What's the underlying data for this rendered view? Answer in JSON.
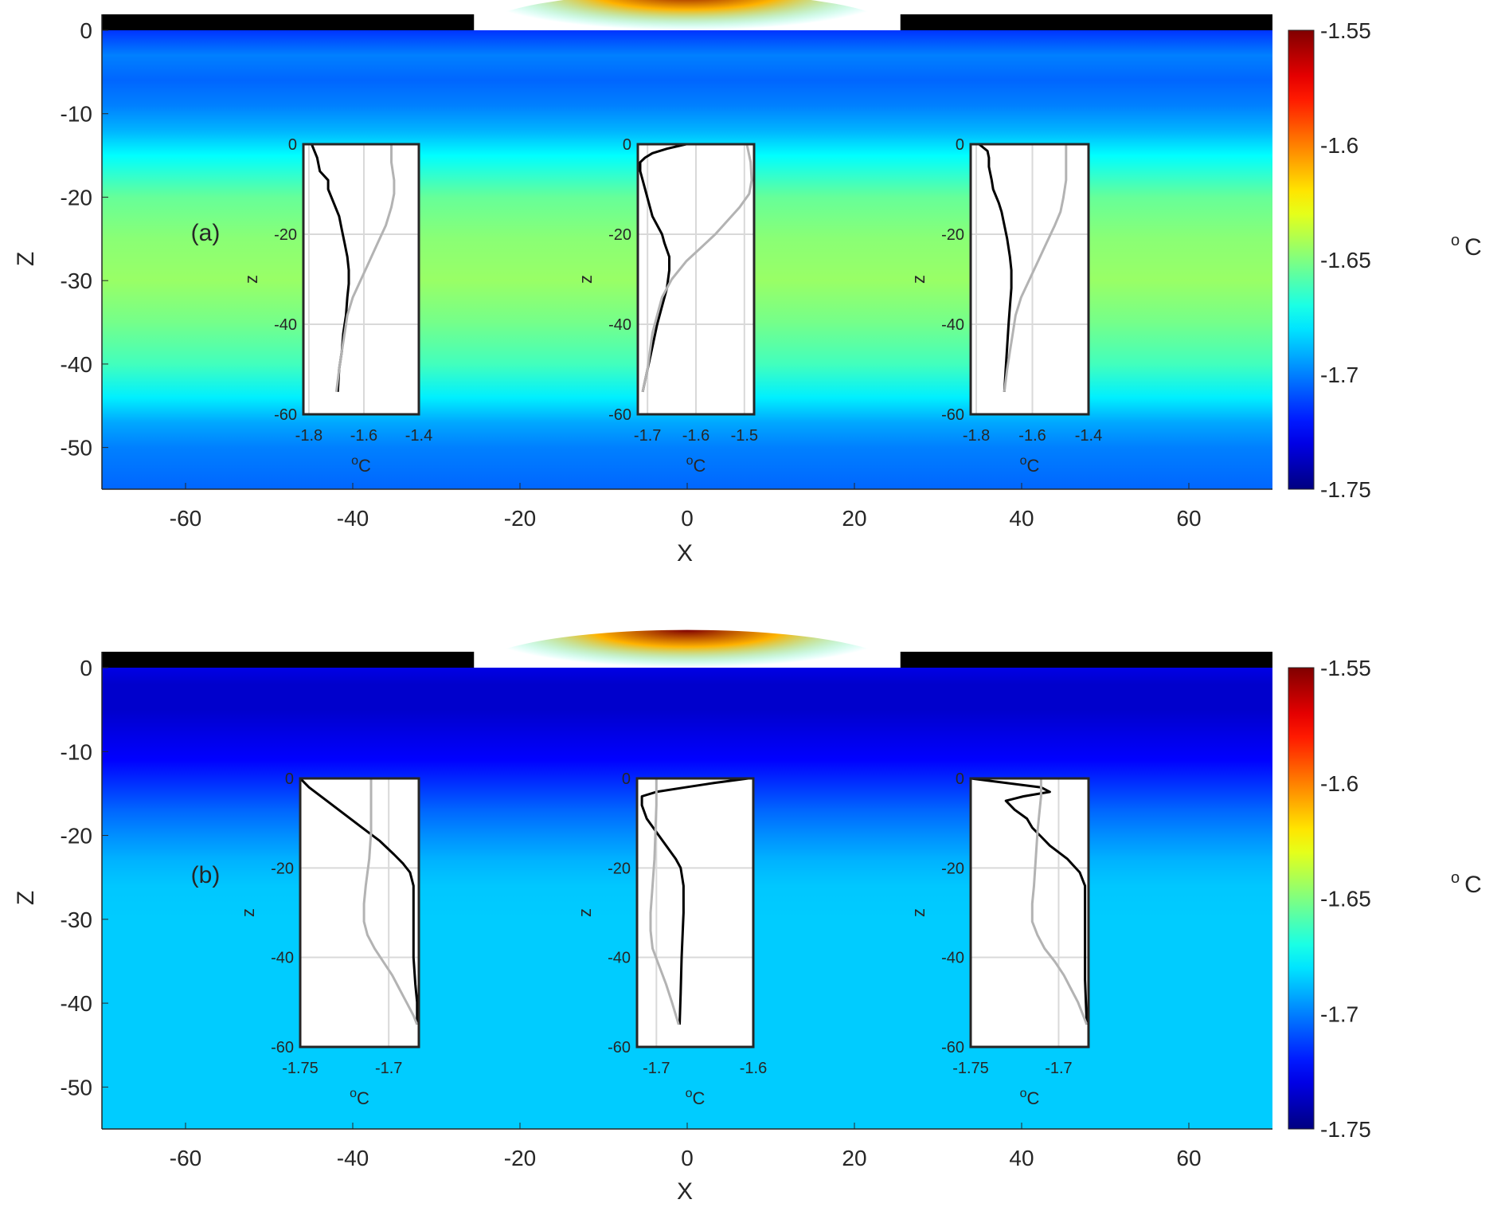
{
  "figure": {
    "colormap": "jet",
    "colors": {
      "ice": "#000000",
      "axes": "#262626",
      "inset_bg": "#ffffff",
      "grid": "#d9d9d9",
      "profile_dark": "#000000",
      "profile_light": "#b3b3b3"
    }
  },
  "chart_data": [
    {
      "type": "heatmap",
      "panel_label": "(a)",
      "xlabel": "X",
      "ylabel": "Z",
      "xlim": [
        -70,
        70
      ],
      "ylim": [
        -55,
        0
      ],
      "xticks": [
        "-60",
        "-40",
        "-20",
        "0",
        "20",
        "40",
        "60"
      ],
      "yticks": [
        "0",
        "-10",
        "-20",
        "-30",
        "-40",
        "-50"
      ],
      "colorbar": {
        "label_sup": "o",
        "label_unit": "C",
        "range": [
          -1.75,
          -1.55
        ],
        "ticks": [
          "-1.55",
          "-1.6",
          "-1.65",
          "-1.7",
          "-1.75"
        ]
      },
      "ice_cover": [
        {
          "x": [
            -70,
            -25.5
          ]
        },
        {
          "x": [
            25.5,
            70
          ]
        }
      ],
      "field_profile": {
        "z": [
          0,
          -1,
          -3,
          -6,
          -9,
          -12,
          -15,
          -20,
          -25,
          -30,
          -35,
          -40,
          -44,
          -47,
          -50,
          -55
        ],
        "t": [
          -1.715,
          -1.71,
          -1.7,
          -1.705,
          -1.7,
          -1.69,
          -1.675,
          -1.655,
          -1.648,
          -1.645,
          -1.652,
          -1.662,
          -1.678,
          -1.692,
          -1.7,
          -1.705
        ]
      },
      "surface_anomaly": {
        "x": [
          -25,
          25
        ],
        "depth": 1.5,
        "peak": -1.55
      },
      "insets": [
        {
          "xlabel_sup": "o",
          "xlabel_unit": "C",
          "ylabel": "z",
          "xlim": [
            -1.82,
            -1.4
          ],
          "ylim": [
            -60,
            0
          ],
          "xticks": [
            -1.8,
            -1.6,
            -1.4
          ],
          "xtick_labels": [
            "-1.8",
            "-1.6",
            "-1.4"
          ],
          "yticks": [
            0,
            -20,
            -40,
            -60
          ],
          "ytick_labels": [
            "0",
            "-20",
            "-40",
            "-60"
          ],
          "series": [
            {
              "color": "#000000",
              "z": [
                0,
                -3,
                -6,
                -8,
                -10,
                -13,
                -16,
                -19,
                -22,
                -25,
                -28,
                -31,
                -34,
                -38,
                -42,
                -46,
                -50,
                -55
              ],
              "t": [
                -1.79,
                -1.77,
                -1.76,
                -1.73,
                -1.73,
                -1.71,
                -1.69,
                -1.68,
                -1.67,
                -1.66,
                -1.655,
                -1.655,
                -1.66,
                -1.665,
                -1.675,
                -1.68,
                -1.69,
                -1.695
              ]
            },
            {
              "color": "#b3b3b3",
              "z": [
                0,
                -4,
                -8,
                -11,
                -14,
                -18,
                -22,
                -26,
                -30,
                -34,
                -38,
                -42,
                -46,
                -50,
                -55
              ],
              "t": [
                -1.5,
                -1.5,
                -1.49,
                -1.49,
                -1.5,
                -1.52,
                -1.55,
                -1.58,
                -1.61,
                -1.64,
                -1.66,
                -1.67,
                -1.68,
                -1.69,
                -1.7
              ]
            }
          ]
        },
        {
          "xlabel_sup": "o",
          "xlabel_unit": "C",
          "ylabel": "z",
          "xlim": [
            -1.72,
            -1.48
          ],
          "ylim": [
            -60,
            0
          ],
          "xticks": [
            -1.7,
            -1.6,
            -1.5
          ],
          "xtick_labels": [
            "-1.7",
            "-1.6",
            "-1.5"
          ],
          "yticks": [
            0,
            -20,
            -40,
            -60
          ],
          "ytick_labels": [
            "0",
            "-20",
            "-40",
            "-60"
          ],
          "series": [
            {
              "color": "#000000",
              "z": [
                0,
                -1,
                -2,
                -3,
                -4,
                -6,
                -8,
                -12,
                -16,
                -20,
                -22,
                -25,
                -28,
                -32,
                -36,
                -40,
                -45,
                -50,
                -55
              ],
              "t": [
                -1.62,
                -1.66,
                -1.69,
                -1.705,
                -1.715,
                -1.715,
                -1.71,
                -1.7,
                -1.69,
                -1.67,
                -1.665,
                -1.655,
                -1.655,
                -1.66,
                -1.67,
                -1.68,
                -1.69,
                -1.7,
                -1.71
              ]
            },
            {
              "color": "#b3b3b3",
              "z": [
                0,
                -4,
                -8,
                -11,
                -14,
                -17,
                -20,
                -23,
                -26,
                -30,
                -34,
                -38,
                -42,
                -46,
                -50,
                -55
              ],
              "t": [
                -1.495,
                -1.487,
                -1.485,
                -1.49,
                -1.51,
                -1.535,
                -1.56,
                -1.59,
                -1.62,
                -1.65,
                -1.67,
                -1.68,
                -1.69,
                -1.695,
                -1.7,
                -1.71
              ]
            }
          ]
        },
        {
          "xlabel_sup": "o",
          "xlabel_unit": "C",
          "ylabel": "z",
          "xlim": [
            -1.82,
            -1.4
          ],
          "ylim": [
            -60,
            0
          ],
          "xticks": [
            -1.8,
            -1.6,
            -1.4
          ],
          "xtick_labels": [
            "-1.8",
            "-1.6",
            "-1.4"
          ],
          "yticks": [
            0,
            -20,
            -40,
            -60
          ],
          "ytick_labels": [
            "0",
            "-20",
            "-40",
            "-60"
          ],
          "series": [
            {
              "color": "#000000",
              "z": [
                0,
                -1.5,
                -3,
                -5,
                -8,
                -10,
                -13,
                -15,
                -18,
                -21,
                -25,
                -28,
                -32,
                -36,
                -40,
                -45,
                -50,
                -55
              ],
              "t": [
                -1.79,
                -1.76,
                -1.755,
                -1.755,
                -1.745,
                -1.74,
                -1.72,
                -1.71,
                -1.7,
                -1.69,
                -1.68,
                -1.675,
                -1.675,
                -1.68,
                -1.685,
                -1.69,
                -1.695,
                -1.7
              ]
            },
            {
              "color": "#b3b3b3",
              "z": [
                0,
                -4,
                -8,
                -12,
                -15,
                -18,
                -22,
                -26,
                -30,
                -34,
                -38,
                -42,
                -46,
                -50,
                -55
              ],
              "t": [
                -1.48,
                -1.48,
                -1.48,
                -1.49,
                -1.5,
                -1.52,
                -1.55,
                -1.58,
                -1.61,
                -1.64,
                -1.66,
                -1.67,
                -1.68,
                -1.69,
                -1.7
              ]
            }
          ]
        }
      ]
    },
    {
      "type": "heatmap",
      "panel_label": "(b)",
      "xlabel": "X",
      "ylabel": "Z",
      "xlim": [
        -70,
        70
      ],
      "ylim": [
        -55,
        0
      ],
      "xticks": [
        "-60",
        "-40",
        "-20",
        "0",
        "20",
        "40",
        "60"
      ],
      "yticks": [
        "0",
        "-10",
        "-20",
        "-30",
        "-40",
        "-50"
      ],
      "colorbar": {
        "label_sup": "o",
        "label_unit": "C",
        "range": [
          -1.75,
          -1.55
        ],
        "ticks": [
          "-1.55",
          "-1.6",
          "-1.65",
          "-1.7",
          "-1.75"
        ]
      },
      "ice_cover": [
        {
          "x": [
            -70,
            -25.5
          ]
        },
        {
          "x": [
            25.5,
            70
          ]
        }
      ],
      "field_profile": {
        "z": [
          0,
          -2,
          -5,
          -8,
          -11,
          -14,
          -17,
          -20,
          -23,
          -26,
          -30,
          -40,
          -55
        ],
        "t": [
          -1.73,
          -1.735,
          -1.735,
          -1.73,
          -1.725,
          -1.715,
          -1.705,
          -1.697,
          -1.69,
          -1.686,
          -1.685,
          -1.685,
          -1.685
        ]
      },
      "surface_anomaly": {
        "x": [
          -25,
          25
        ],
        "depth": 1.5,
        "peak": -1.55
      },
      "insets": [
        {
          "xlabel_sup": "o",
          "xlabel_unit": "C",
          "ylabel": "z",
          "xlim": [
            -1.75,
            -1.683
          ],
          "ylim": [
            -60,
            0
          ],
          "xticks": [
            -1.75,
            -1.7
          ],
          "xtick_labels": [
            "-1.75",
            "-1.7"
          ],
          "yticks": [
            0,
            -20,
            -40,
            -60
          ],
          "ytick_labels": [
            "0",
            "-20",
            "-40",
            "-60"
          ],
          "series": [
            {
              "color": "#000000",
              "z": [
                0,
                -2,
                -5,
                -8,
                -11,
                -14,
                -17,
                -19,
                -21,
                -24,
                -28,
                -34,
                -40,
                -46,
                -50,
                -55
              ],
              "t": [
                -1.75,
                -1.745,
                -1.735,
                -1.725,
                -1.715,
                -1.705,
                -1.697,
                -1.692,
                -1.688,
                -1.686,
                -1.686,
                -1.686,
                -1.686,
                -1.685,
                -1.684,
                -1.684
              ]
            },
            {
              "color": "#b3b3b3",
              "z": [
                0,
                -6,
                -12,
                -18,
                -24,
                -28,
                -32,
                -35,
                -38,
                -41,
                -44,
                -47,
                -50,
                -53,
                -55
              ],
              "t": [
                -1.71,
                -1.71,
                -1.71,
                -1.711,
                -1.713,
                -1.714,
                -1.714,
                -1.712,
                -1.708,
                -1.703,
                -1.698,
                -1.694,
                -1.69,
                -1.686,
                -1.684
              ]
            }
          ]
        },
        {
          "xlabel_sup": "o",
          "xlabel_unit": "C",
          "ylabel": "z",
          "xlim": [
            -1.72,
            -1.6
          ],
          "ylim": [
            -60,
            0
          ],
          "xticks": [
            -1.7,
            -1.6
          ],
          "xtick_labels": [
            "-1.7",
            "-1.6"
          ],
          "yticks": [
            0,
            -20,
            -40,
            -60
          ],
          "ytick_labels": [
            "0",
            "-20",
            "-40",
            "-60"
          ],
          "series": [
            {
              "color": "#000000",
              "z": [
                0,
                -1,
                -2,
                -3,
                -4,
                -6,
                -9,
                -12,
                -15,
                -18,
                -20,
                -24,
                -30,
                -40,
                -48,
                -55
              ],
              "t": [
                -1.605,
                -1.64,
                -1.67,
                -1.7,
                -1.715,
                -1.715,
                -1.71,
                -1.7,
                -1.69,
                -1.68,
                -1.675,
                -1.672,
                -1.672,
                -1.674,
                -1.675,
                -1.676
              ]
            },
            {
              "color": "#b3b3b3",
              "z": [
                0,
                -6,
                -12,
                -18,
                -24,
                -30,
                -34,
                -38,
                -42,
                -46,
                -50,
                -55
              ],
              "t": [
                -1.7,
                -1.7,
                -1.701,
                -1.702,
                -1.704,
                -1.706,
                -1.706,
                -1.704,
                -1.697,
                -1.69,
                -1.684,
                -1.677
              ]
            }
          ]
        },
        {
          "xlabel_sup": "o",
          "xlabel_unit": "C",
          "ylabel": "z",
          "xlim": [
            -1.75,
            -1.683
          ],
          "ylim": [
            -60,
            0
          ],
          "xticks": [
            -1.75,
            -1.7
          ],
          "xtick_labels": [
            "-1.75",
            "-1.7"
          ],
          "yticks": [
            0,
            -20,
            -40,
            -60
          ],
          "ytick_labels": [
            "0",
            "-20",
            "-40",
            "-60"
          ],
          "series": [
            {
              "color": "#000000",
              "z": [
                0,
                -1,
                -2,
                -3,
                -4,
                -5,
                -7,
                -9,
                -11,
                -13,
                -15,
                -18,
                -21,
                -24,
                -28,
                -35,
                -45,
                -55
              ],
              "t": [
                -1.75,
                -1.73,
                -1.71,
                -1.705,
                -1.72,
                -1.73,
                -1.725,
                -1.718,
                -1.715,
                -1.71,
                -1.705,
                -1.695,
                -1.688,
                -1.685,
                -1.685,
                -1.685,
                -1.685,
                -1.684
              ]
            },
            {
              "color": "#b3b3b3",
              "z": [
                0,
                -4,
                -8,
                -12,
                -18,
                -24,
                -28,
                -32,
                -35,
                -38,
                -41,
                -44,
                -47,
                -50,
                -53,
                -55
              ],
              "t": [
                -1.71,
                -1.71,
                -1.711,
                -1.712,
                -1.713,
                -1.714,
                -1.715,
                -1.715,
                -1.712,
                -1.708,
                -1.702,
                -1.697,
                -1.693,
                -1.689,
                -1.686,
                -1.684
              ]
            }
          ]
        }
      ]
    }
  ]
}
